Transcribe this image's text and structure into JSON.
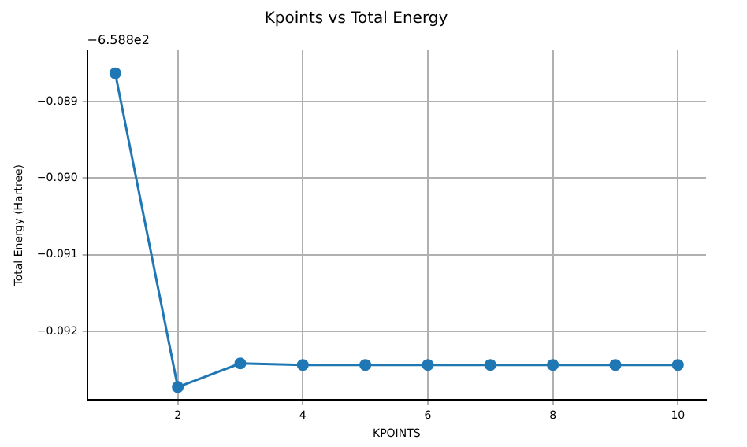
{
  "chart_data": {
    "type": "line",
    "title": "Kpoints vs Total Energy",
    "xlabel": "KPOINTS",
    "ylabel": "Total Energy (Hartree)",
    "annotations": [
      "−6.588e2"
    ],
    "x": [
      1,
      2,
      3,
      4,
      5,
      6,
      7,
      8,
      9,
      10
    ],
    "series": [
      {
        "color": "#1f77b4",
        "values": [
          -0.08863,
          -0.09273,
          -0.09242,
          -0.09244,
          -0.09244,
          -0.09244,
          -0.09244,
          -0.09244,
          -0.09244,
          -0.09244
        ]
      }
    ],
    "xlim": [
      0.55,
      10.45
    ],
    "xticks": [
      2,
      4,
      6,
      8,
      10
    ],
    "ylim": [
      -0.0929,
      -0.08833
    ],
    "yticks": [
      {
        "value": -0.089,
        "label": "−0.089"
      },
      {
        "value": -0.09,
        "label": "−0.090"
      },
      {
        "value": -0.091,
        "label": "−0.091"
      },
      {
        "value": -0.092,
        "label": "−0.092"
      }
    ],
    "grid": true,
    "marker": "circle",
    "line_style": "solid"
  }
}
